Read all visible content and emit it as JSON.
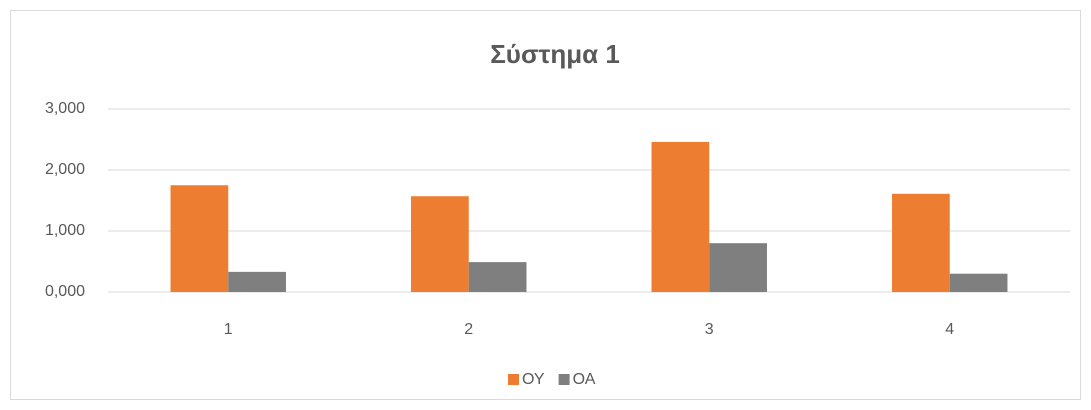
{
  "chart_data": {
    "type": "bar",
    "title": "Σύστημα 1",
    "categories": [
      "1",
      "2",
      "3",
      "4"
    ],
    "series": [
      {
        "name": "ΟΥ",
        "color": "#ed7d31",
        "values": [
          1.75,
          1.57,
          2.46,
          1.61
        ]
      },
      {
        "name": "ΟΑ",
        "color": "#7f7f7f",
        "values": [
          0.33,
          0.49,
          0.8,
          0.3
        ]
      }
    ],
    "ylim": [
      0,
      3
    ],
    "yticks": [
      {
        "value": 0,
        "label": "0,000"
      },
      {
        "value": 1,
        "label": "1,000"
      },
      {
        "value": 2,
        "label": "2,000"
      },
      {
        "value": 3,
        "label": "3,000"
      }
    ],
    "grid": true,
    "legend": "bottom"
  }
}
